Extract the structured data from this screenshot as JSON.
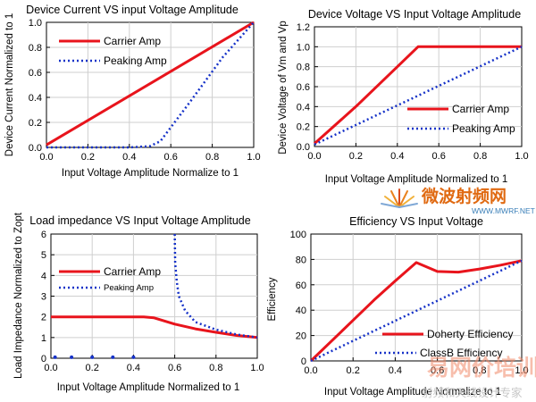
{
  "chart_data": [
    {
      "type": "line",
      "title": "Device Current VS input Voltage Amplitude",
      "xlabel": "Input Voltage Amplitude Normalize to 1",
      "ylabel": "Device Current Normalized to 1",
      "xlim": [
        0,
        1
      ],
      "ylim": [
        0,
        1
      ],
      "xticks": [
        "0.0",
        "0.2",
        "0.4",
        "0.6",
        "0.8",
        "1.0"
      ],
      "yticks": [
        "0.0",
        "0.2",
        "0.4",
        "0.6",
        "0.8",
        "1.0"
      ],
      "legend": "top-left",
      "series": [
        {
          "name": "Carrier Amp",
          "style": "solid",
          "color": "#e8141c",
          "x": [
            0,
            1
          ],
          "y": [
            0.02,
            1.0
          ]
        },
        {
          "name": "Peaking Amp",
          "style": "dotted",
          "color": "#1632c8",
          "x": [
            0,
            0.4,
            0.5,
            0.55,
            0.7,
            0.85,
            1.0
          ],
          "y": [
            0,
            0,
            0.01,
            0.05,
            0.38,
            0.72,
            1.0
          ]
        }
      ]
    },
    {
      "type": "line",
      "title": "Device Voltage VS Input Voltage Amplitude",
      "xlabel": "Input Voltage Amplitude Normalized to 1",
      "ylabel": "Device Voltage of Vm and Vp",
      "xlim": [
        0,
        1
      ],
      "ylim": [
        0,
        1.2
      ],
      "xticks": [
        "0.0",
        "0.2",
        "0.4",
        "0.6",
        "0.8",
        "1.0"
      ],
      "yticks": [
        "0.0",
        "0.2",
        "0.4",
        "0.6",
        "0.8",
        "1.0",
        "1.2"
      ],
      "legend": "right",
      "series": [
        {
          "name": "Carrier Amp",
          "style": "solid",
          "color": "#e8141c",
          "x": [
            0,
            0.2,
            0.4,
            0.5,
            1.0
          ],
          "y": [
            0.03,
            0.4,
            0.8,
            1.0,
            1.0
          ]
        },
        {
          "name": "Peaking Amp",
          "style": "dotted",
          "color": "#1632c8",
          "x": [
            0,
            1.0
          ],
          "y": [
            0.02,
            1.0
          ]
        }
      ]
    },
    {
      "type": "line",
      "title": "Load impedance VS Input Voltage Amplitude",
      "xlabel": "Input Voltage Amplitude Normalized to 1",
      "ylabel": "Load Impedance Normalized to Zopt",
      "xlim": [
        0,
        1
      ],
      "ylim": [
        0,
        6
      ],
      "xticks": [
        "0.0",
        "0.2",
        "0.4",
        "0.6",
        "0.8",
        "1.0"
      ],
      "yticks": [
        "0",
        "1",
        "2",
        "3",
        "4",
        "5",
        "6"
      ],
      "legend": "top-left",
      "series": [
        {
          "name": "Carrier Amp",
          "style": "solid",
          "color": "#e8141c",
          "x": [
            0,
            0.45,
            0.5,
            0.6,
            0.7,
            0.8,
            0.9,
            1.0
          ],
          "y": [
            2.0,
            2.0,
            1.95,
            1.65,
            1.42,
            1.25,
            1.1,
            1.0
          ]
        },
        {
          "name": "Peaking Amp",
          "style": "dotted",
          "color": "#1632c8",
          "x": [
            0.6,
            0.602,
            0.61,
            0.62,
            0.65,
            0.7,
            0.8,
            0.9,
            1.0
          ],
          "y": [
            6.0,
            4.6,
            3.7,
            3.0,
            2.3,
            1.75,
            1.38,
            1.15,
            1.0
          ]
        },
        {
          "name": "Peaking Amp markers",
          "style": "markers",
          "color": "#1632c8",
          "x": [
            0.02,
            0.1,
            0.2,
            0.3,
            0.4
          ],
          "y": [
            0.05,
            0.05,
            0.05,
            0.05,
            0.05
          ]
        }
      ]
    },
    {
      "type": "line",
      "title": "Efficiency VS Input Voltage",
      "xlabel": "Input Voltage Amplitude Normalize to 1",
      "ylabel": "Efficiency",
      "xlim": [
        0,
        1
      ],
      "ylim": [
        0,
        100
      ],
      "xticks": [
        "0.0",
        "0.2",
        "0.4",
        "0.6",
        "0.8",
        "1.0"
      ],
      "yticks": [
        "0",
        "20",
        "40",
        "60",
        "80",
        "100"
      ],
      "legend": "bottom-right",
      "series": [
        {
          "name": "Doherty Efficiency",
          "style": "solid",
          "color": "#e8141c",
          "x": [
            0,
            0.1,
            0.2,
            0.3,
            0.4,
            0.5,
            0.6,
            0.7,
            0.8,
            0.9,
            1.0
          ],
          "y": [
            0,
            16,
            32,
            48,
            63,
            77.5,
            70.5,
            70,
            72.5,
            75.5,
            79
          ]
        },
        {
          "name": "ClassB Efficiency",
          "style": "dotted",
          "color": "#1632c8",
          "x": [
            0,
            1.0
          ],
          "y": [
            0,
            79
          ]
        }
      ]
    }
  ],
  "watermark": {
    "brand_cn": "微波射频网",
    "url": "WWW.MWRF.NET",
    "corner_cn": "易网价培训",
    "corner_sub": "射频和天线设计专家"
  }
}
